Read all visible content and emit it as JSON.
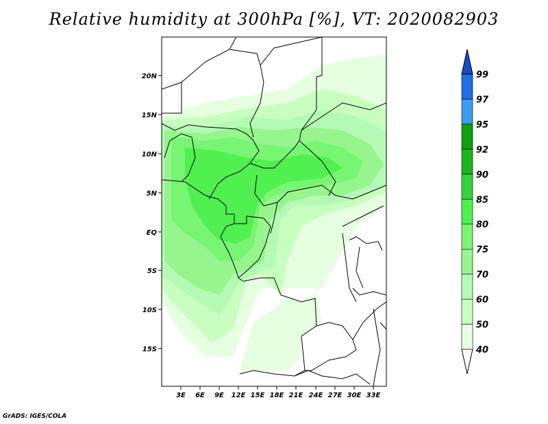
{
  "title": "Relative humidity at 300hPa [%], VT: 2020082903",
  "credit": "GrADS: IGES/COLA",
  "map": {
    "lat_ticks": [
      "20N",
      "15N",
      "10N",
      "5N",
      "EQ",
      "5S",
      "10S",
      "15S"
    ],
    "lon_ticks": [
      "3E",
      "6E",
      "9E",
      "12E",
      "15E",
      "18E",
      "21E",
      "24E",
      "27E",
      "30E",
      "33E"
    ]
  },
  "colorbar": {
    "levels": [
      "40",
      "50",
      "60",
      "70",
      "75",
      "80",
      "85",
      "90",
      "92",
      "95",
      "97",
      "99"
    ],
    "colors": [
      "#ffffff",
      "#e6ffe1",
      "#c8ffbe",
      "#b4fab4",
      "#96f58c",
      "#78f573",
      "#50f050",
      "#37d23c",
      "#1eb41e",
      "#0fa00f",
      "#3c9cf0",
      "#1e6ee6",
      "#1450c8"
    ]
  }
}
